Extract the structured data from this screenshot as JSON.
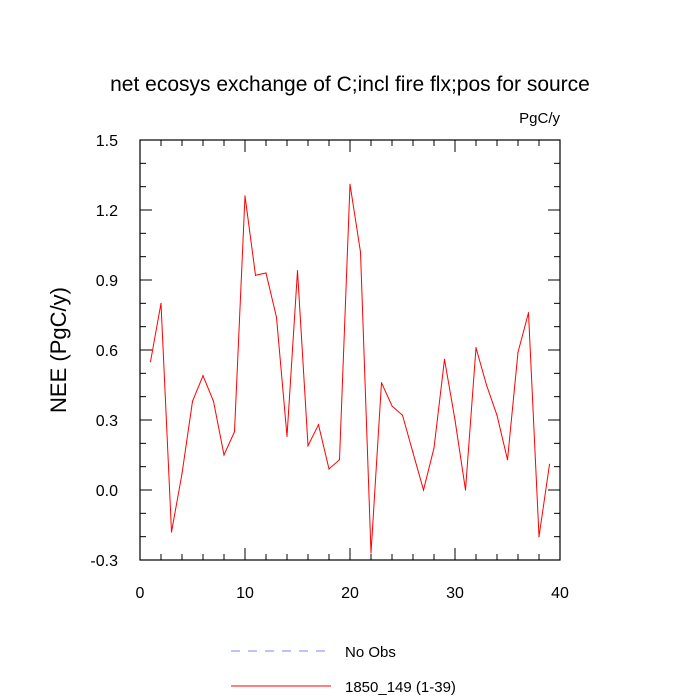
{
  "chart_data": {
    "type": "line",
    "title": "net ecosys exchange of C;incl fire flx;pos for source",
    "units_label": "PgC/y",
    "ylabel": "NEE  (PgC/y)",
    "xlabel": "",
    "xlim": [
      0,
      40
    ],
    "ylim": [
      -0.3,
      1.5
    ],
    "x_ticks": [
      0,
      10,
      20,
      30,
      40
    ],
    "y_ticks": [
      "-0.3",
      "0.0",
      "0.3",
      "0.6",
      "0.9",
      "1.2",
      "1.5"
    ],
    "grid": false,
    "legend_position": "bottom",
    "series": [
      {
        "name": "No Obs",
        "color": "#8080ff",
        "style": "dashed",
        "x": [],
        "y": []
      },
      {
        "name": "1850_149 (1-39)",
        "color": "#ff0000",
        "style": "solid",
        "x": [
          1,
          2,
          3,
          4,
          5,
          6,
          7,
          8,
          9,
          10,
          11,
          12,
          13,
          14,
          15,
          16,
          17,
          18,
          19,
          20,
          21,
          22,
          23,
          24,
          25,
          26,
          27,
          28,
          29,
          30,
          31,
          32,
          33,
          34,
          35,
          36,
          37,
          38,
          39
        ],
        "y": [
          0.55,
          0.8,
          -0.18,
          0.07,
          0.38,
          0.49,
          0.38,
          0.15,
          0.25,
          1.26,
          0.92,
          0.93,
          0.74,
          0.23,
          0.94,
          0.19,
          0.28,
          0.09,
          0.13,
          1.31,
          1.02,
          -0.27,
          0.46,
          0.36,
          0.32,
          0.16,
          0.0,
          0.18,
          0.56,
          0.3,
          0.0,
          0.61,
          0.45,
          0.32,
          0.13,
          0.59,
          0.76,
          -0.2,
          0.11
        ]
      }
    ]
  }
}
